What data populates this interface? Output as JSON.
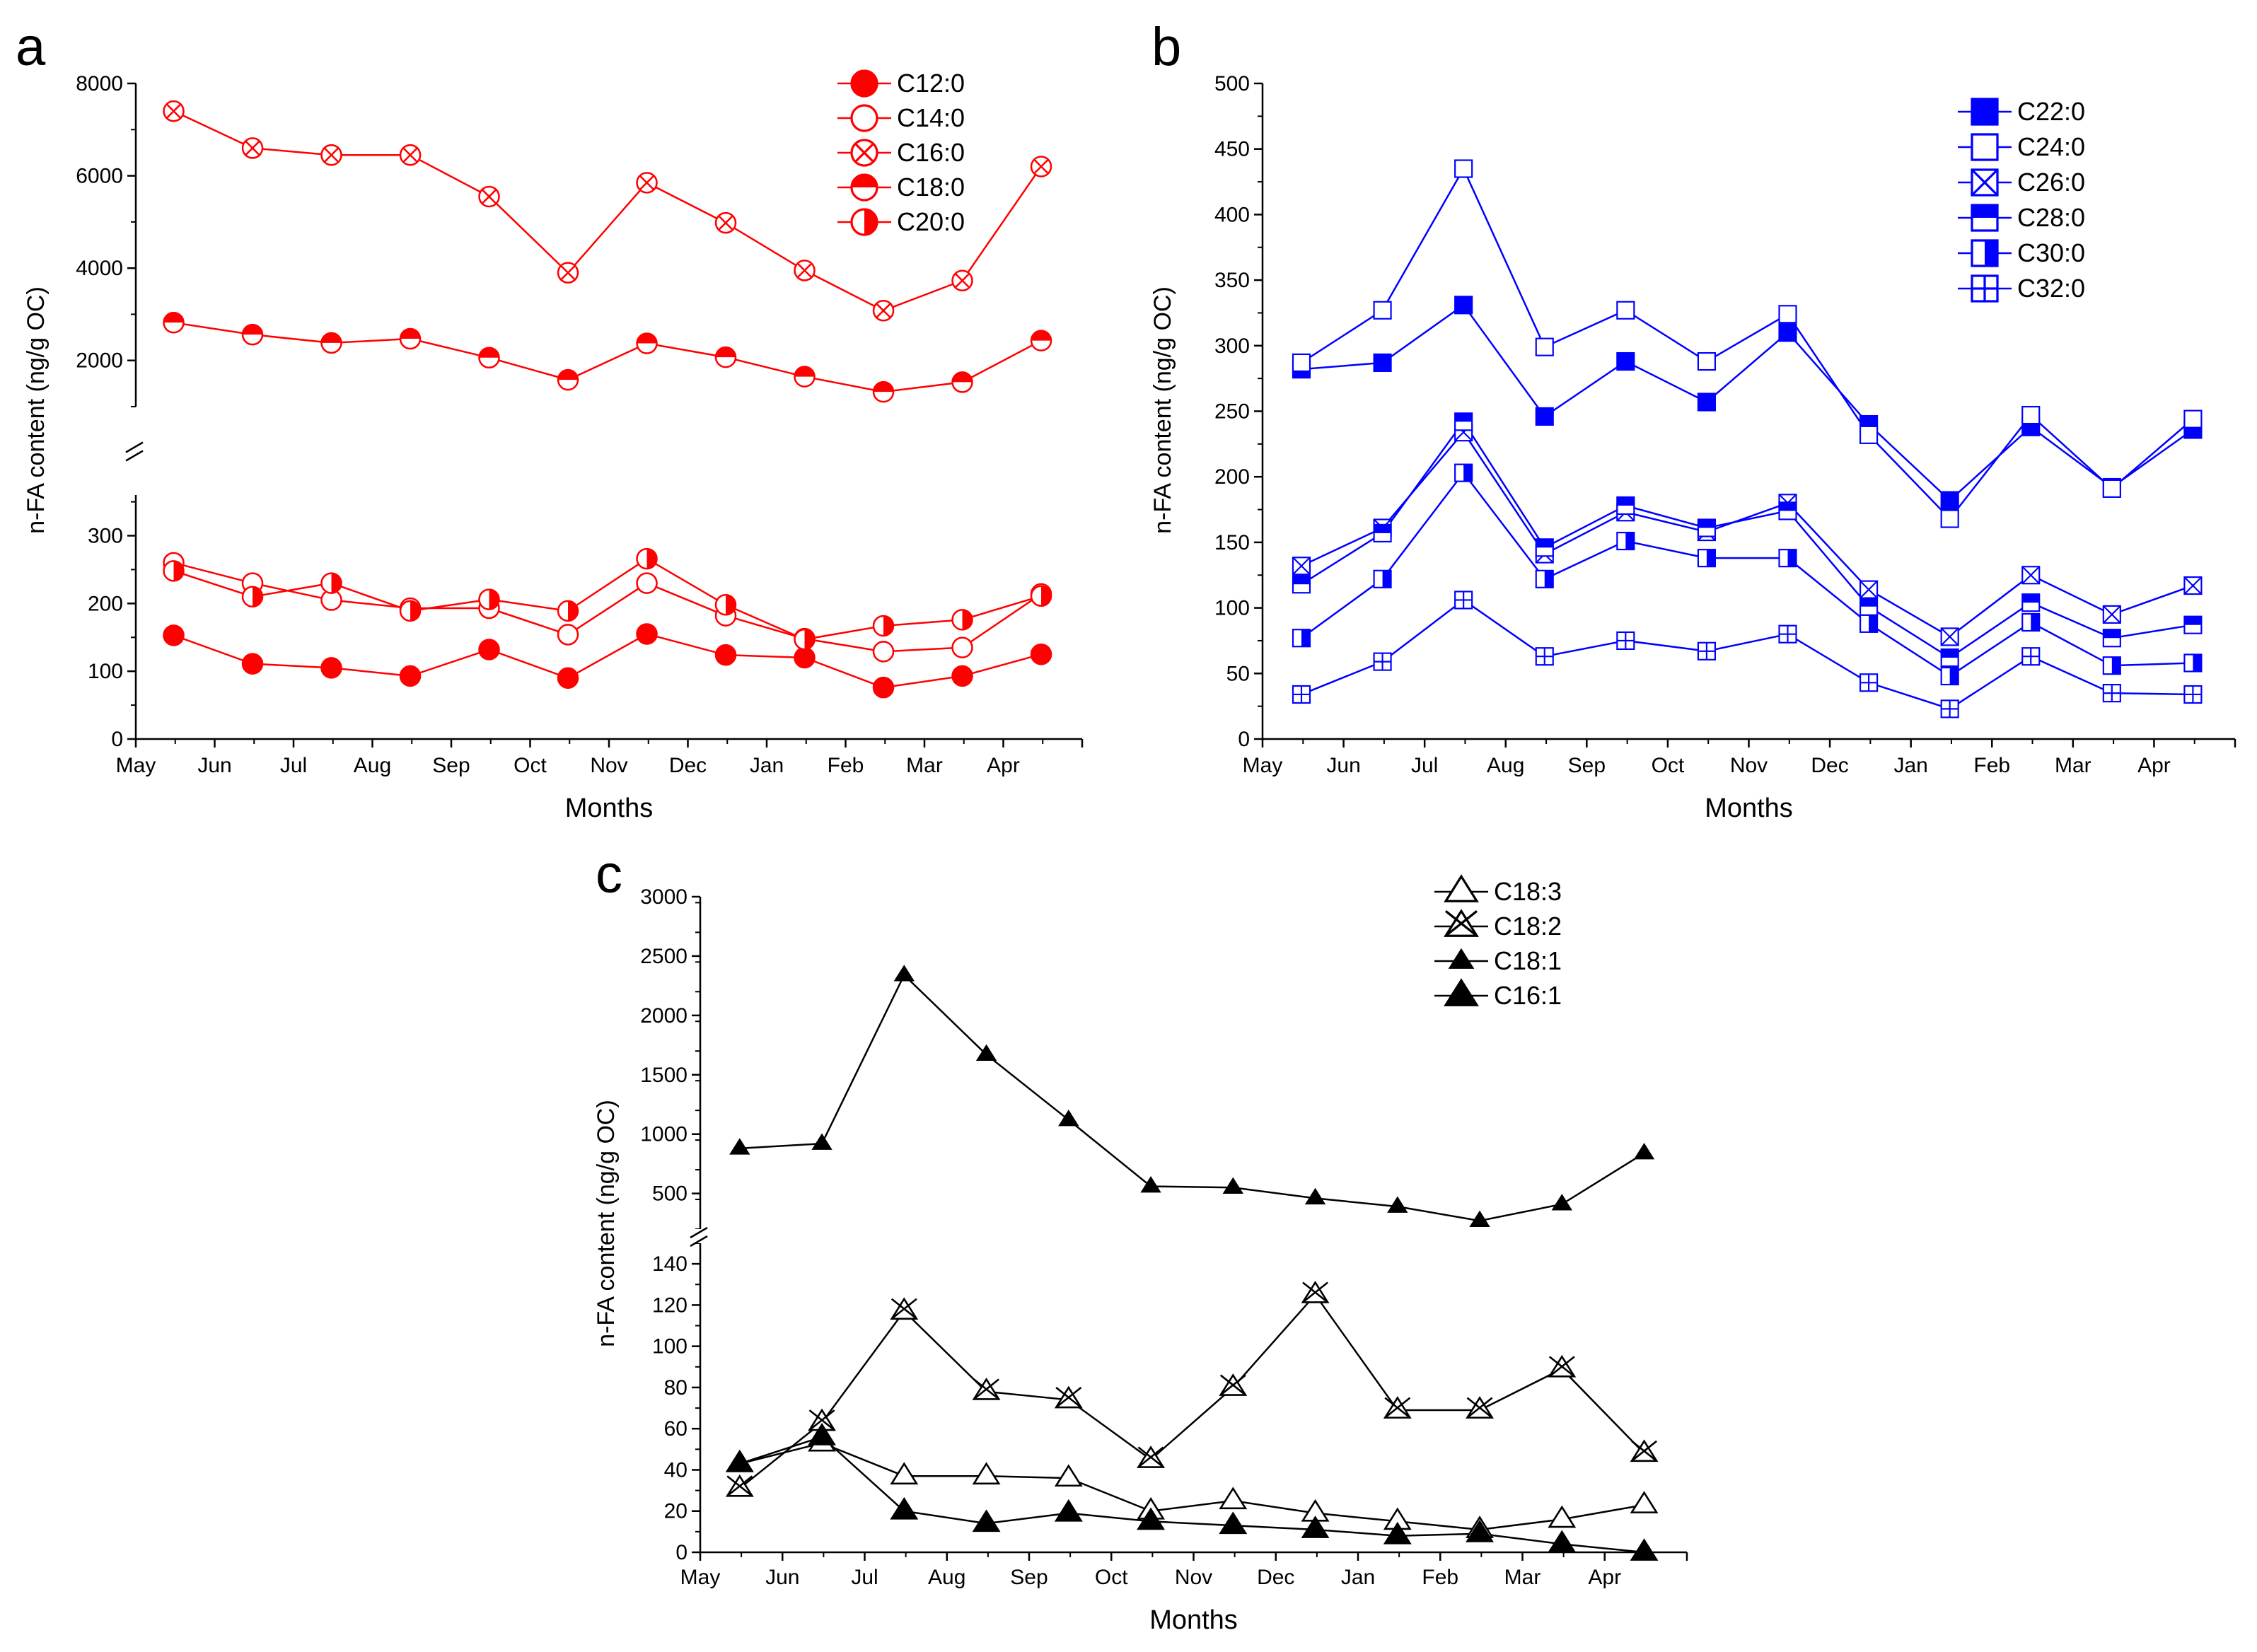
{
  "months": [
    "May",
    "Jun",
    "Jul",
    "Aug",
    "Sep",
    "Oct",
    "Nov",
    "Dec",
    "Jan",
    "Feb",
    "Mar",
    "Apr"
  ],
  "chart_data": [
    {
      "panel": "a",
      "type": "line",
      "color": "#ff0000",
      "xlabel": "Months",
      "ylabel": "n-FA content (ng/g OC)",
      "y_axis_break": true,
      "ylim_lower": [
        0,
        360
      ],
      "ylim_upper": [
        1000,
        8000
      ],
      "yticks_lower": [
        0,
        100,
        200,
        300
      ],
      "yticks_upper": [
        2000,
        4000,
        6000,
        8000
      ],
      "legend_position": "top-right",
      "series": [
        {
          "name": "C12:0",
          "marker": "filled-circle",
          "values": [
            153,
            111,
            105,
            93,
            132,
            90,
            155,
            124,
            120,
            76,
            93,
            125
          ]
        },
        {
          "name": "C14:0",
          "marker": "open-circle",
          "values": [
            260,
            230,
            205,
            193,
            193,
            154,
            230,
            182,
            148,
            129,
            135,
            214
          ]
        },
        {
          "name": "C16:0",
          "marker": "crossed-circle",
          "values": [
            7400,
            6600,
            6450,
            6450,
            5550,
            3900,
            5850,
            4980,
            3950,
            3080,
            3730,
            6200
          ]
        },
        {
          "name": "C18:0",
          "marker": "half-top-circle",
          "values": [
            2820,
            2560,
            2380,
            2470,
            2060,
            1580,
            2370,
            2070,
            1650,
            1320,
            1530,
            2430
          ]
        },
        {
          "name": "C20:0",
          "marker": "half-right-circle",
          "values": [
            248,
            210,
            230,
            189,
            206,
            189,
            266,
            198,
            147,
            167,
            176,
            211
          ]
        }
      ]
    },
    {
      "panel": "b",
      "type": "line",
      "color": "#0000ff",
      "xlabel": "Months",
      "ylabel": "n-FA content (ng/g OC)",
      "ylim": [
        0,
        500
      ],
      "yticks": [
        0,
        50,
        100,
        150,
        200,
        250,
        300,
        350,
        400,
        450,
        500
      ],
      "legend_position": "top-right",
      "series": [
        {
          "name": "C22:0",
          "marker": "filled-square",
          "values": [
            282,
            287,
            331,
            246,
            288,
            257,
            310,
            240,
            182,
            238,
            192,
            236
          ]
        },
        {
          "name": "C24:0",
          "marker": "open-square",
          "values": [
            287,
            327,
            435,
            299,
            327,
            288,
            324,
            232,
            168,
            247,
            191,
            244
          ]
        },
        {
          "name": "C26:0",
          "marker": "crossed-square",
          "values": [
            132,
            161,
            234,
            141,
            173,
            158,
            180,
            114,
            78,
            125,
            95,
            117
          ]
        },
        {
          "name": "C28:0",
          "marker": "half-top-square",
          "values": [
            118,
            157,
            242,
            146,
            178,
            161,
            174,
            101,
            62,
            104,
            77,
            87
          ]
        },
        {
          "name": "C30:0",
          "marker": "half-right-square",
          "values": [
            77,
            122,
            203,
            122,
            151,
            138,
            138,
            88,
            48,
            89,
            56,
            58
          ]
        },
        {
          "name": "C32:0",
          "marker": "plus-square",
          "values": [
            34,
            59,
            106,
            63,
            75,
            67,
            80,
            43,
            23,
            63,
            35,
            34
          ]
        }
      ]
    },
    {
      "panel": "c",
      "type": "line",
      "color": "#000000",
      "xlabel": "Months",
      "ylabel": "n-FA content (ng/g OC)",
      "y_axis_break": true,
      "ylim_lower": [
        0,
        150
      ],
      "ylim_upper": [
        200,
        3000
      ],
      "yticks_lower": [
        0,
        20,
        40,
        60,
        80,
        100,
        120,
        140
      ],
      "yticks_upper": [
        500,
        1000,
        1500,
        2000,
        2500,
        3000
      ],
      "legend_position": "top-right",
      "series": [
        {
          "name": "C18:3",
          "marker": "open-triangle",
          "values": [
            43,
            53,
            37,
            37,
            36,
            20,
            25,
            19,
            15,
            11,
            16,
            23
          ]
        },
        {
          "name": "C18:2",
          "marker": "crossed-triangle",
          "values": [
            31,
            63,
            117,
            78,
            74,
            45,
            80,
            125,
            69,
            69,
            89,
            48
          ]
        },
        {
          "name": "C18:1",
          "marker": "small-filled-triangle",
          "values": [
            880,
            920,
            2340,
            1670,
            1120,
            560,
            550,
            460,
            390,
            270,
            410,
            840
          ]
        },
        {
          "name": "C16:1",
          "marker": "filled-triangle",
          "values": [
            43,
            56,
            20,
            14,
            19,
            15,
            13,
            11,
            8,
            9,
            4,
            0
          ]
        }
      ]
    }
  ],
  "panel_labels": {
    "a": "a",
    "b": "b",
    "c": "c"
  }
}
